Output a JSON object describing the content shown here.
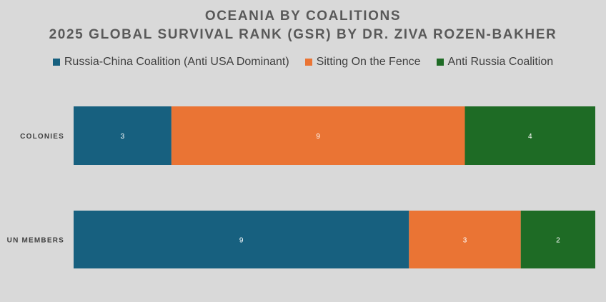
{
  "chart_data": {
    "type": "bar",
    "orientation": "horizontal",
    "stacked": "percent",
    "title": "OCEANIA BY COALITIONS",
    "subtitle": "2025 GLOBAL SURVIVAL RANK (GSR) BY DR. ZIVA ROZEN-BAKHER",
    "categories": [
      "COLONIES",
      "UN MEMBERS"
    ],
    "series": [
      {
        "name": "Russia-China Coalition (Anti USA Dominant)",
        "color": "#17607f",
        "values": [
          3,
          9
        ]
      },
      {
        "name": "Sitting On the Fence",
        "color": "#ea7434",
        "values": [
          9,
          3
        ]
      },
      {
        "name": "Anti Russia Coalition",
        "color": "#1e6b25",
        "values": [
          4,
          2
        ]
      }
    ],
    "legend_position": "top",
    "grid": false
  }
}
